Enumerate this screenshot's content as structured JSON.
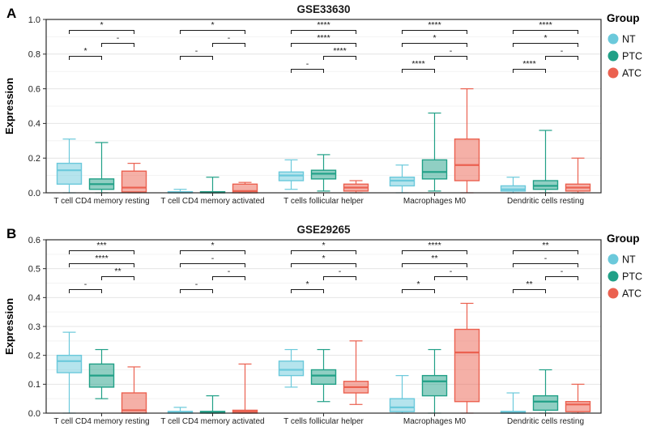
{
  "figure_type": "grouped-boxplot-figure",
  "box_stats_order": [
    "whisker_low",
    "q1",
    "median",
    "q3",
    "whisker_high"
  ],
  "chart_data": [
    {
      "type": "boxplot",
      "panel_label": "A",
      "title": "GSE33630",
      "ylabel": "Expression",
      "ylim": [
        0.0,
        1.0
      ],
      "yticks": [
        0.0,
        0.2,
        0.4,
        0.6,
        0.8,
        1.0
      ],
      "grid": true,
      "legend_position": "right",
      "legend_title": "Group",
      "groups": [
        "NT",
        "PTC",
        "ATC"
      ],
      "group_colors": [
        "#6BC9DB",
        "#21A087",
        "#EB6150"
      ],
      "categories": [
        "T cell CD4 memory resting",
        "T cell CD4 memory activated",
        "T cells follicular helper",
        "Macrophages M0",
        "Dendritic cells resting"
      ],
      "boxes": [
        [
          [
            0.0,
            0.05,
            0.13,
            0.17,
            0.31
          ],
          [
            0.0,
            0.02,
            0.05,
            0.08,
            0.29
          ],
          [
            0.0,
            0.005,
            0.03,
            0.125,
            0.17
          ]
        ],
        [
          [
            0.0,
            0.0,
            0.002,
            0.006,
            0.02
          ],
          [
            0.0,
            0.0,
            0.002,
            0.006,
            0.09
          ],
          [
            0.0,
            0.0,
            0.01,
            0.05,
            0.06
          ]
        ],
        [
          [
            0.02,
            0.07,
            0.1,
            0.12,
            0.19
          ],
          [
            0.01,
            0.08,
            0.11,
            0.13,
            0.22
          ],
          [
            0.0,
            0.01,
            0.03,
            0.05,
            0.07
          ]
        ],
        [
          [
            0.0,
            0.04,
            0.07,
            0.09,
            0.16
          ],
          [
            0.01,
            0.08,
            0.12,
            0.19,
            0.46
          ],
          [
            0.0,
            0.07,
            0.16,
            0.31,
            0.6
          ]
        ],
        [
          [
            0.0,
            0.01,
            0.02,
            0.04,
            0.09
          ],
          [
            0.0,
            0.02,
            0.04,
            0.07,
            0.36
          ],
          [
            0.0,
            0.01,
            0.03,
            0.05,
            0.2
          ]
        ]
      ],
      "significance": [
        [
          {
            "pair": [
              "NT",
              "ATC"
            ],
            "label": "*"
          },
          {
            "pair": [
              "PTC",
              "ATC"
            ],
            "label": "-"
          },
          {
            "pair": [
              "NT",
              "PTC"
            ],
            "label": "*"
          }
        ],
        [
          {
            "pair": [
              "NT",
              "ATC"
            ],
            "label": "*"
          },
          {
            "pair": [
              "PTC",
              "ATC"
            ],
            "label": "-"
          },
          {
            "pair": [
              "NT",
              "PTC"
            ],
            "label": "-"
          }
        ],
        [
          {
            "pair": [
              "NT",
              "ATC"
            ],
            "label": "****"
          },
          {
            "pair": [
              "NT",
              "ATC"
            ],
            "label": "****"
          },
          {
            "pair": [
              "PTC",
              "ATC"
            ],
            "label": "****"
          },
          {
            "pair": [
              "NT",
              "PTC"
            ],
            "label": "-"
          }
        ],
        [
          {
            "pair": [
              "NT",
              "ATC"
            ],
            "label": "****"
          },
          {
            "pair": [
              "NT",
              "ATC"
            ],
            "label": "*"
          },
          {
            "pair": [
              "PTC",
              "ATC"
            ],
            "label": "-"
          },
          {
            "pair": [
              "NT",
              "PTC"
            ],
            "label": "****"
          }
        ],
        [
          {
            "pair": [
              "NT",
              "ATC"
            ],
            "label": "****"
          },
          {
            "pair": [
              "NT",
              "ATC"
            ],
            "label": "*"
          },
          {
            "pair": [
              "PTC",
              "ATC"
            ],
            "label": "-"
          },
          {
            "pair": [
              "NT",
              "PTC"
            ],
            "label": "****"
          }
        ]
      ]
    },
    {
      "type": "boxplot",
      "panel_label": "B",
      "title": "GSE29265",
      "ylabel": "Expression",
      "ylim": [
        0.0,
        0.6
      ],
      "yticks": [
        0.0,
        0.1,
        0.2,
        0.3,
        0.4,
        0.5,
        0.6
      ],
      "grid": true,
      "legend_position": "right",
      "legend_title": "Group",
      "groups": [
        "NT",
        "PTC",
        "ATC"
      ],
      "group_colors": [
        "#6BC9DB",
        "#21A087",
        "#EB6150"
      ],
      "categories": [
        "T cell CD4 memory resting",
        "T cell CD4 memory activated",
        "T cells follicular helper",
        "Macrophages M0",
        "Dendritic cells resting"
      ],
      "boxes": [
        [
          [
            0.0,
            0.14,
            0.18,
            0.2,
            0.28
          ],
          [
            0.05,
            0.09,
            0.13,
            0.17,
            0.22
          ],
          [
            0.0,
            0.0,
            0.01,
            0.07,
            0.16
          ]
        ],
        [
          [
            0.0,
            0.0,
            0.002,
            0.006,
            0.02
          ],
          [
            0.0,
            0.0,
            0.002,
            0.006,
            0.06
          ],
          [
            0.0,
            0.0,
            0.005,
            0.01,
            0.17
          ]
        ],
        [
          [
            0.09,
            0.13,
            0.15,
            0.18,
            0.22
          ],
          [
            0.04,
            0.1,
            0.13,
            0.15,
            0.22
          ],
          [
            0.03,
            0.07,
            0.09,
            0.11,
            0.25
          ]
        ],
        [
          [
            0.0,
            0.005,
            0.02,
            0.05,
            0.13
          ],
          [
            0.0,
            0.06,
            0.11,
            0.13,
            0.22
          ],
          [
            0.0,
            0.04,
            0.21,
            0.29,
            0.38
          ]
        ],
        [
          [
            0.0,
            0.0,
            0.002,
            0.006,
            0.07
          ],
          [
            0.0,
            0.01,
            0.04,
            0.06,
            0.15
          ],
          [
            0.0,
            0.005,
            0.03,
            0.04,
            0.1
          ]
        ]
      ],
      "significance": [
        [
          {
            "pair": [
              "NT",
              "ATC"
            ],
            "label": "***"
          },
          {
            "pair": [
              "NT",
              "ATC"
            ],
            "label": "****"
          },
          {
            "pair": [
              "PTC",
              "ATC"
            ],
            "label": "**"
          },
          {
            "pair": [
              "NT",
              "PTC"
            ],
            "label": "-"
          }
        ],
        [
          {
            "pair": [
              "NT",
              "ATC"
            ],
            "label": "*"
          },
          {
            "pair": [
              "NT",
              "ATC"
            ],
            "label": "-"
          },
          {
            "pair": [
              "PTC",
              "ATC"
            ],
            "label": "-"
          },
          {
            "pair": [
              "NT",
              "PTC"
            ],
            "label": "-"
          }
        ],
        [
          {
            "pair": [
              "NT",
              "ATC"
            ],
            "label": "*"
          },
          {
            "pair": [
              "NT",
              "ATC"
            ],
            "label": "*"
          },
          {
            "pair": [
              "PTC",
              "ATC"
            ],
            "label": "-"
          },
          {
            "pair": [
              "NT",
              "PTC"
            ],
            "label": "*"
          }
        ],
        [
          {
            "pair": [
              "NT",
              "ATC"
            ],
            "label": "****"
          },
          {
            "pair": [
              "NT",
              "ATC"
            ],
            "label": "**"
          },
          {
            "pair": [
              "PTC",
              "ATC"
            ],
            "label": "-"
          },
          {
            "pair": [
              "NT",
              "PTC"
            ],
            "label": "*"
          }
        ],
        [
          {
            "pair": [
              "NT",
              "ATC"
            ],
            "label": "**"
          },
          {
            "pair": [
              "NT",
              "ATC"
            ],
            "label": "-"
          },
          {
            "pair": [
              "PTC",
              "ATC"
            ],
            "label": "-"
          },
          {
            "pair": [
              "NT",
              "PTC"
            ],
            "label": "**"
          }
        ]
      ]
    }
  ]
}
